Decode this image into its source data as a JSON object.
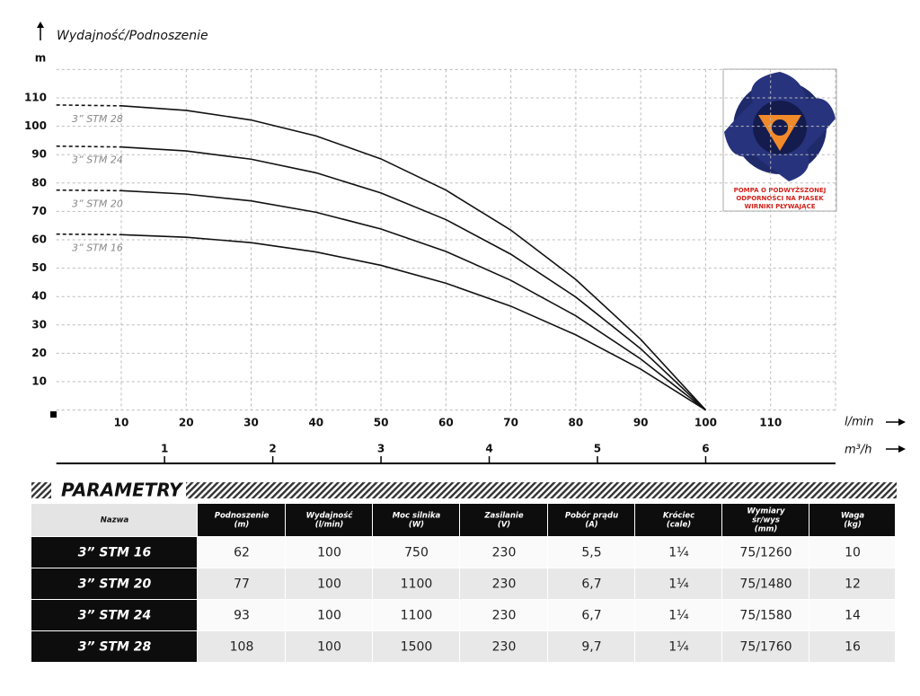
{
  "chart_data": {
    "type": "line",
    "title": "Wydajność/Podnoszenie",
    "y_label": "m",
    "x_label": "l/min",
    "x2_label": "m³/h",
    "x": [
      0,
      10,
      20,
      30,
      40,
      50,
      60,
      70,
      80,
      90,
      100
    ],
    "series": [
      {
        "name": "3” STM 28",
        "color": "#111111",
        "values": [
          107.5,
          107.2,
          105.6,
          102.2,
          96.6,
          88.5,
          77.5,
          63.4,
          46.0,
          24.9,
          0
        ]
      },
      {
        "name": "3” STM 24",
        "color": "#111111",
        "values": [
          93,
          92.7,
          91.3,
          88.4,
          83.6,
          76.5,
          67.1,
          54.9,
          39.8,
          21.6,
          0
        ]
      },
      {
        "name": "3” STM 20",
        "color": "#111111",
        "values": [
          77.5,
          77.3,
          76.1,
          73.7,
          69.7,
          63.8,
          55.9,
          45.7,
          33.2,
          18.0,
          0
        ]
      },
      {
        "name": "3” STM 16",
        "color": "#111111",
        "values": [
          62,
          61.8,
          60.9,
          59.0,
          55.7,
          51.0,
          44.7,
          36.6,
          26.5,
          14.4,
          0
        ]
      }
    ],
    "xlim": [
      0,
      120
    ],
    "xticks": [
      10,
      20,
      30,
      40,
      50,
      60,
      70,
      80,
      90,
      100,
      110
    ],
    "x2lim": [
      0,
      7.2
    ],
    "x2ticks": [
      1,
      2,
      3,
      4,
      5,
      6
    ],
    "ylim": [
      0,
      120
    ],
    "yticks": [
      10,
      20,
      30,
      40,
      50,
      60,
      70,
      80,
      90,
      100,
      110
    ],
    "grid": true
  },
  "badge": {
    "lines": [
      "POMPA O PODWYŻSZONEJ",
      "ODPORNOŚCI NA PIASEK",
      "WIRNIKI PŁYWAJĄCE"
    ]
  },
  "table": {
    "title": "PARAMETRY",
    "headers": [
      [
        "Nazwa"
      ],
      [
        "Podnoszenie",
        "(m)"
      ],
      [
        "Wydajność",
        "(l/min)"
      ],
      [
        "Moc silnika",
        "(W)"
      ],
      [
        "Zasilanie",
        "(V)"
      ],
      [
        "Pobór prądu",
        "(A)"
      ],
      [
        "Króciec",
        "(cale)"
      ],
      [
        "Wymiary",
        "śr/wys",
        "(mm)"
      ],
      [
        "Waga",
        "(kg)"
      ]
    ],
    "rows": [
      [
        "3” STM 16",
        "62",
        "100",
        "750",
        "230",
        "5,5",
        "1¼",
        "75/1260",
        "10"
      ],
      [
        "3” STM 20",
        "77",
        "100",
        "1100",
        "230",
        "6,7",
        "1¼",
        "75/1480",
        "12"
      ],
      [
        "3” STM 24",
        "93",
        "100",
        "1100",
        "230",
        "6,7",
        "1¼",
        "75/1580",
        "14"
      ],
      [
        "3” STM 28",
        "108",
        "100",
        "1500",
        "230",
        "9,7",
        "1¼",
        "75/1760",
        "16"
      ]
    ]
  }
}
